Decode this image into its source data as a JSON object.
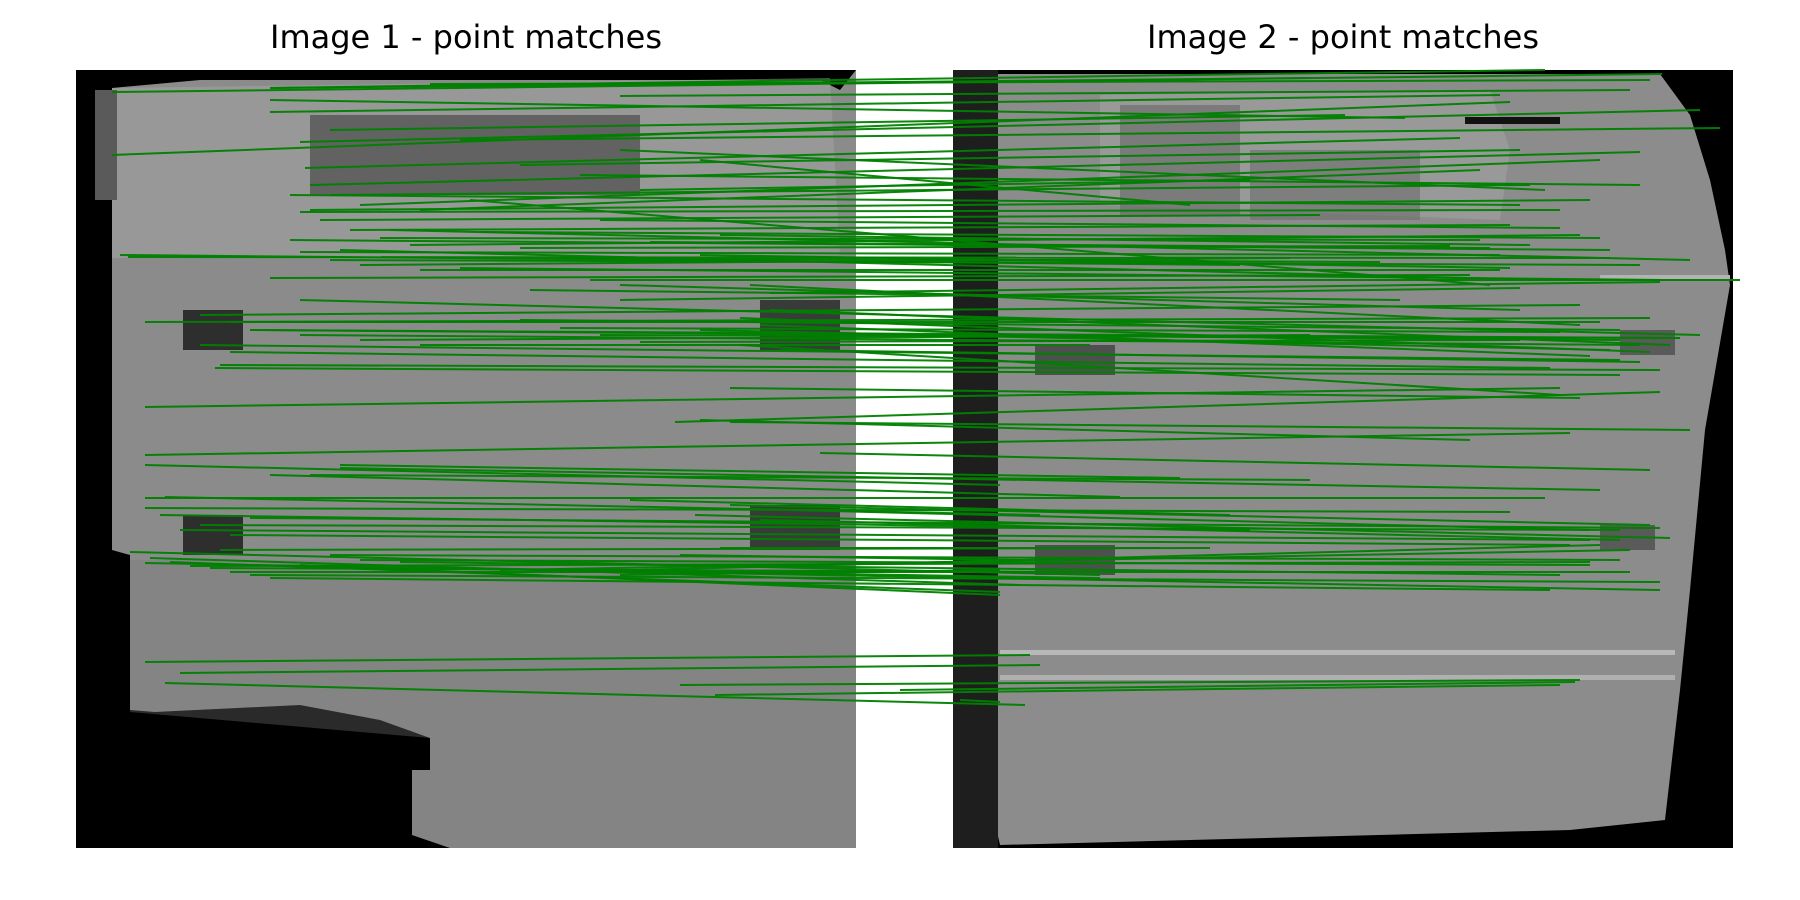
{
  "titles": {
    "image1": "Image 1 - point matches",
    "image2": "Image 2 - point matches"
  },
  "colors": {
    "match_line": "#008000",
    "image_background": "#000000",
    "object_gray": "#8a8a8a",
    "dark_feature": "#2f2f2f",
    "light_stripe": "#b8b8b8"
  },
  "chart_data": {
    "type": "match-lines",
    "description_count": 130,
    "matches": [
      [
        112,
        92,
        1662,
        74
      ],
      [
        270,
        88,
        1310,
        78
      ],
      [
        270,
        112,
        1500,
        95
      ],
      [
        430,
        84,
        1650,
        80
      ],
      [
        620,
        96,
        1630,
        90
      ],
      [
        330,
        130,
        1345,
        115
      ],
      [
        112,
        155,
        1510,
        102
      ],
      [
        300,
        142,
        1700,
        110
      ],
      [
        305,
        168,
        1460,
        138
      ],
      [
        460,
        140,
        1720,
        128
      ],
      [
        310,
        185,
        1640,
        152
      ],
      [
        330,
        195,
        1530,
        185
      ],
      [
        360,
        205,
        1600,
        160
      ],
      [
        420,
        210,
        1480,
        170
      ],
      [
        520,
        165,
        1520,
        150
      ],
      [
        580,
        175,
        1640,
        185
      ],
      [
        620,
        150,
        1545,
        190
      ],
      [
        640,
        190,
        1250,
        180
      ],
      [
        700,
        160,
        1190,
        205
      ],
      [
        300,
        212,
        1560,
        210
      ],
      [
        320,
        220,
        1320,
        215
      ],
      [
        350,
        230,
        1510,
        225
      ],
      [
        380,
        238,
        1480,
        240
      ],
      [
        410,
        245,
        1580,
        235
      ],
      [
        290,
        240,
        1610,
        250
      ],
      [
        300,
        252,
        1500,
        255
      ],
      [
        330,
        260,
        1640,
        265
      ],
      [
        360,
        265,
        1290,
        258
      ],
      [
        420,
        270,
        1500,
        270
      ],
      [
        480,
        232,
        1600,
        238
      ],
      [
        520,
        248,
        1450,
        246
      ],
      [
        560,
        258,
        1380,
        262
      ],
      [
        600,
        220,
        1560,
        228
      ],
      [
        650,
        242,
        1490,
        248
      ],
      [
        700,
        255,
        1510,
        268
      ],
      [
        720,
        235,
        1530,
        245
      ],
      [
        128,
        257,
        1610,
        258
      ],
      [
        270,
        278,
        1470,
        275
      ],
      [
        460,
        268,
        1660,
        280
      ],
      [
        770,
        293,
        1660,
        282
      ],
      [
        620,
        300,
        1520,
        288
      ],
      [
        145,
        322,
        1650,
        318
      ],
      [
        200,
        315,
        1580,
        305
      ],
      [
        230,
        322,
        1600,
        322
      ],
      [
        250,
        330,
        1620,
        340
      ],
      [
        300,
        335,
        1640,
        345
      ],
      [
        360,
        340,
        1310,
        335
      ],
      [
        420,
        345,
        1090,
        345
      ],
      [
        520,
        320,
        1620,
        330
      ],
      [
        560,
        328,
        1560,
        332
      ],
      [
        600,
        335,
        1680,
        338
      ],
      [
        640,
        342,
        1520,
        340
      ],
      [
        700,
        330,
        1610,
        350
      ],
      [
        740,
        318,
        1650,
        352
      ],
      [
        770,
        310,
        1670,
        345
      ],
      [
        200,
        345,
        1620,
        360
      ],
      [
        230,
        352,
        1550,
        368
      ],
      [
        220,
        365,
        1660,
        370
      ],
      [
        780,
        350,
        1640,
        362
      ],
      [
        760,
        325,
        1590,
        356
      ],
      [
        215,
        368,
        1620,
        375
      ],
      [
        730,
        388,
        1580,
        398
      ],
      [
        145,
        407,
        1560,
        388
      ],
      [
        730,
        422,
        1690,
        430
      ],
      [
        145,
        455,
        1570,
        433
      ],
      [
        675,
        422,
        1660,
        392
      ],
      [
        820,
        453,
        1650,
        470
      ],
      [
        145,
        465,
        1000,
        485
      ],
      [
        270,
        475,
        1120,
        497
      ],
      [
        340,
        465,
        1180,
        478
      ],
      [
        145,
        498,
        1545,
        498
      ],
      [
        340,
        468,
        1600,
        490
      ],
      [
        165,
        497,
        1040,
        515
      ],
      [
        145,
        508,
        1510,
        512
      ],
      [
        250,
        518,
        1660,
        528
      ],
      [
        200,
        525,
        1620,
        530
      ],
      [
        180,
        530,
        1590,
        540
      ],
      [
        230,
        535,
        1570,
        545
      ],
      [
        695,
        515,
        1670,
        538
      ],
      [
        730,
        505,
        1650,
        525
      ],
      [
        760,
        520,
        1620,
        540
      ],
      [
        790,
        510,
        1590,
        530
      ],
      [
        130,
        552,
        1100,
        575
      ],
      [
        150,
        558,
        1020,
        585
      ],
      [
        170,
        562,
        1000,
        592
      ],
      [
        190,
        566,
        1590,
        562
      ],
      [
        210,
        568,
        1070,
        572
      ],
      [
        230,
        572,
        1630,
        572
      ],
      [
        250,
        575,
        1660,
        582
      ],
      [
        270,
        578,
        1550,
        590
      ],
      [
        300,
        565,
        1000,
        595
      ],
      [
        330,
        555,
        1620,
        560
      ],
      [
        360,
        560,
        1590,
        565
      ],
      [
        400,
        562,
        1560,
        575
      ],
      [
        450,
        568,
        1100,
        578
      ],
      [
        500,
        570,
        1630,
        550
      ],
      [
        560,
        572,
        1600,
        545
      ],
      [
        620,
        575,
        1000,
        570
      ],
      [
        680,
        555,
        1020,
        560
      ],
      [
        720,
        548,
        1160,
        548
      ],
      [
        145,
        563,
        1660,
        590
      ],
      [
        145,
        662,
        1030,
        655
      ],
      [
        180,
        673,
        1040,
        665
      ],
      [
        165,
        683,
        1025,
        705
      ],
      [
        680,
        685,
        1580,
        680
      ],
      [
        715,
        695,
        1560,
        685
      ],
      [
        900,
        690,
        1575,
        682
      ],
      [
        960,
        700,
        1000,
        702
      ],
      [
        270,
        88,
        1545,
        70
      ],
      [
        270,
        100,
        1405,
        118
      ],
      [
        290,
        195,
        1520,
        205
      ],
      [
        310,
        210,
        1590,
        200
      ],
      [
        340,
        250,
        1550,
        280
      ],
      [
        390,
        230,
        1690,
        260
      ],
      [
        470,
        200,
        1490,
        285
      ],
      [
        530,
        290,
        1400,
        300
      ],
      [
        590,
        280,
        1740,
        280
      ],
      [
        620,
        285,
        1520,
        310
      ],
      [
        750,
        285,
        1580,
        325
      ],
      [
        120,
        255,
        1240,
        265
      ],
      [
        250,
        330,
        1680,
        338
      ],
      [
        300,
        300,
        1700,
        335
      ],
      [
        740,
        345,
        1560,
        395
      ],
      [
        700,
        420,
        1470,
        440
      ],
      [
        310,
        475,
        1310,
        480
      ],
      [
        630,
        500,
        1230,
        515
      ],
      [
        220,
        550,
        1210,
        548
      ],
      [
        160,
        515,
        1250,
        530
      ]
    ]
  }
}
